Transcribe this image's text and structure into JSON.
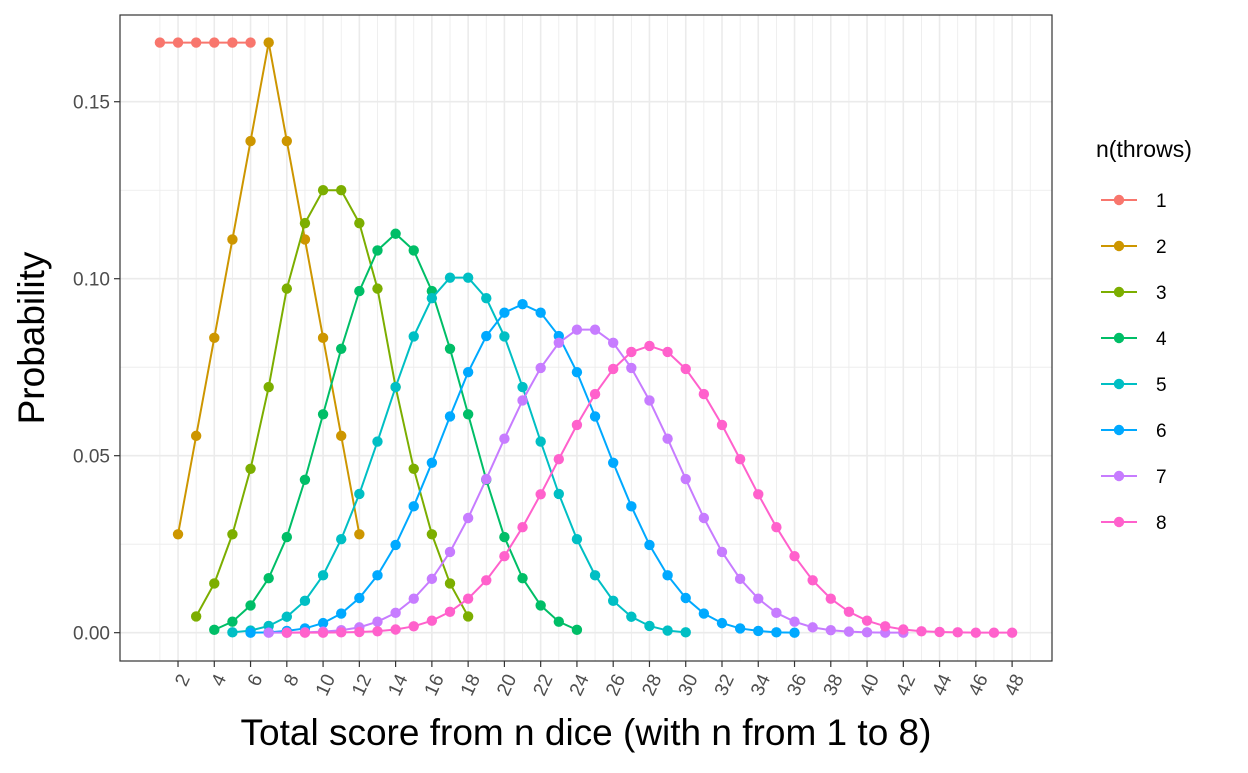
{
  "chart_data": {
    "type": "line",
    "xlabel": "Total score from n dice (with n from 1 to 8)",
    "ylabel": "Probability",
    "xlim": [
      -1.2,
      50.2
    ],
    "ylim": [
      -0.008,
      0.1745
    ],
    "x_ticks": [
      2,
      4,
      6,
      8,
      10,
      12,
      14,
      16,
      18,
      20,
      22,
      24,
      26,
      28,
      30,
      32,
      34,
      36,
      38,
      40,
      42,
      44,
      46,
      48
    ],
    "y_ticks": [
      0.0,
      0.05,
      0.1,
      0.15
    ],
    "y_tick_labels": [
      "0.00",
      "0.05",
      "0.10",
      "0.15"
    ],
    "grid": true,
    "markers": true,
    "legend": {
      "title": "n(throws)",
      "position": "right",
      "entries": [
        "1",
        "2",
        "3",
        "4",
        "5",
        "6",
        "7",
        "8"
      ]
    },
    "series": [
      {
        "name": "1",
        "color": "#F8766D",
        "x": [
          1,
          2,
          3,
          4,
          5,
          6
        ],
        "values": [
          0.1667,
          0.1667,
          0.1667,
          0.1667,
          0.1667,
          0.1667
        ]
      },
      {
        "name": "2",
        "color": "#CD9600",
        "x": [
          2,
          3,
          4,
          5,
          6,
          7,
          8,
          9,
          10,
          11,
          12
        ],
        "values": [
          0.0278,
          0.0556,
          0.0833,
          0.1111,
          0.1389,
          0.1667,
          0.1389,
          0.1111,
          0.0833,
          0.0556,
          0.0278
        ]
      },
      {
        "name": "3",
        "color": "#7CAE00",
        "x": [
          3,
          4,
          5,
          6,
          7,
          8,
          9,
          10,
          11,
          12,
          13,
          14,
          15,
          16,
          17,
          18
        ],
        "values": [
          0.0046,
          0.0139,
          0.0278,
          0.0463,
          0.0694,
          0.0972,
          0.1157,
          0.125,
          0.125,
          0.1157,
          0.0972,
          0.0694,
          0.0463,
          0.0278,
          0.0139,
          0.0046
        ]
      },
      {
        "name": "4",
        "color": "#00BE67",
        "x": [
          4,
          5,
          6,
          7,
          8,
          9,
          10,
          11,
          12,
          13,
          14,
          15,
          16,
          17,
          18,
          19,
          20,
          21,
          22,
          23,
          24
        ],
        "values": [
          0.0008,
          0.0031,
          0.0077,
          0.0154,
          0.027,
          0.0432,
          0.0617,
          0.0802,
          0.0965,
          0.108,
          0.1127,
          0.108,
          0.0965,
          0.0802,
          0.0617,
          0.0432,
          0.027,
          0.0154,
          0.0077,
          0.0031,
          0.0008
        ]
      },
      {
        "name": "5",
        "color": "#00BFC4",
        "x": [
          5,
          6,
          7,
          8,
          9,
          10,
          11,
          12,
          13,
          14,
          15,
          16,
          17,
          18,
          19,
          20,
          21,
          22,
          23,
          24,
          25,
          26,
          27,
          28,
          29,
          30
        ],
        "values": [
          0.0001,
          0.0006,
          0.0019,
          0.0045,
          0.009,
          0.0162,
          0.0264,
          0.0392,
          0.054,
          0.0694,
          0.0837,
          0.0945,
          0.1003,
          0.1003,
          0.0945,
          0.0837,
          0.0694,
          0.054,
          0.0392,
          0.0264,
          0.0162,
          0.009,
          0.0045,
          0.0019,
          0.0006,
          0.0001
        ]
      },
      {
        "name": "6",
        "color": "#00A9FF",
        "x": [
          6,
          7,
          8,
          9,
          10,
          11,
          12,
          13,
          14,
          15,
          16,
          17,
          18,
          19,
          20,
          21,
          22,
          23,
          24,
          25,
          26,
          27,
          28,
          29,
          30,
          31,
          32,
          33,
          34,
          35,
          36
        ],
        "values": [
          0.0,
          0.0001,
          0.0005,
          0.0012,
          0.0027,
          0.0054,
          0.0098,
          0.0162,
          0.0248,
          0.0357,
          0.048,
          0.0611,
          0.0736,
          0.0838,
          0.0904,
          0.0928,
          0.0904,
          0.0838,
          0.0736,
          0.0611,
          0.048,
          0.0357,
          0.0248,
          0.0162,
          0.0098,
          0.0054,
          0.0027,
          0.0012,
          0.0005,
          0.0001,
          0.0
        ]
      },
      {
        "name": "7",
        "color": "#C77CFF",
        "x": [
          7,
          8,
          9,
          10,
          11,
          12,
          13,
          14,
          15,
          16,
          17,
          18,
          19,
          20,
          21,
          22,
          23,
          24,
          25,
          26,
          27,
          28,
          29,
          30,
          31,
          32,
          33,
          34,
          35,
          36,
          37,
          38,
          39,
          40,
          41,
          42
        ],
        "values": [
          0.0,
          0.0,
          0.0001,
          0.0003,
          0.0007,
          0.0015,
          0.0031,
          0.0056,
          0.0096,
          0.0152,
          0.0228,
          0.0324,
          0.0434,
          0.0548,
          0.0656,
          0.0748,
          0.0819,
          0.0856,
          0.0856,
          0.0819,
          0.0748,
          0.0656,
          0.0548,
          0.0434,
          0.0324,
          0.0228,
          0.0152,
          0.0096,
          0.0056,
          0.0031,
          0.0015,
          0.0007,
          0.0003,
          0.0001,
          0.0,
          0.0
        ]
      },
      {
        "name": "8",
        "color": "#FF61CC",
        "x": [
          8,
          9,
          10,
          11,
          12,
          13,
          14,
          15,
          16,
          17,
          18,
          19,
          20,
          21,
          22,
          23,
          24,
          25,
          26,
          27,
          28,
          29,
          30,
          31,
          32,
          33,
          34,
          35,
          36,
          37,
          38,
          39,
          40,
          41,
          42,
          43,
          44,
          45,
          46,
          47,
          48
        ],
        "values": [
          0.0,
          0.0,
          0.0,
          0.0001,
          0.0002,
          0.0004,
          0.0009,
          0.0018,
          0.0034,
          0.0059,
          0.0096,
          0.0148,
          0.0216,
          0.0298,
          0.0391,
          0.049,
          0.0587,
          0.0674,
          0.0745,
          0.0793,
          0.081,
          0.0793,
          0.0745,
          0.0674,
          0.0587,
          0.049,
          0.0391,
          0.0298,
          0.0216,
          0.0148,
          0.0096,
          0.0059,
          0.0034,
          0.0018,
          0.0009,
          0.0004,
          0.0002,
          0.0001,
          0.0,
          0.0,
          0.0
        ]
      }
    ]
  }
}
